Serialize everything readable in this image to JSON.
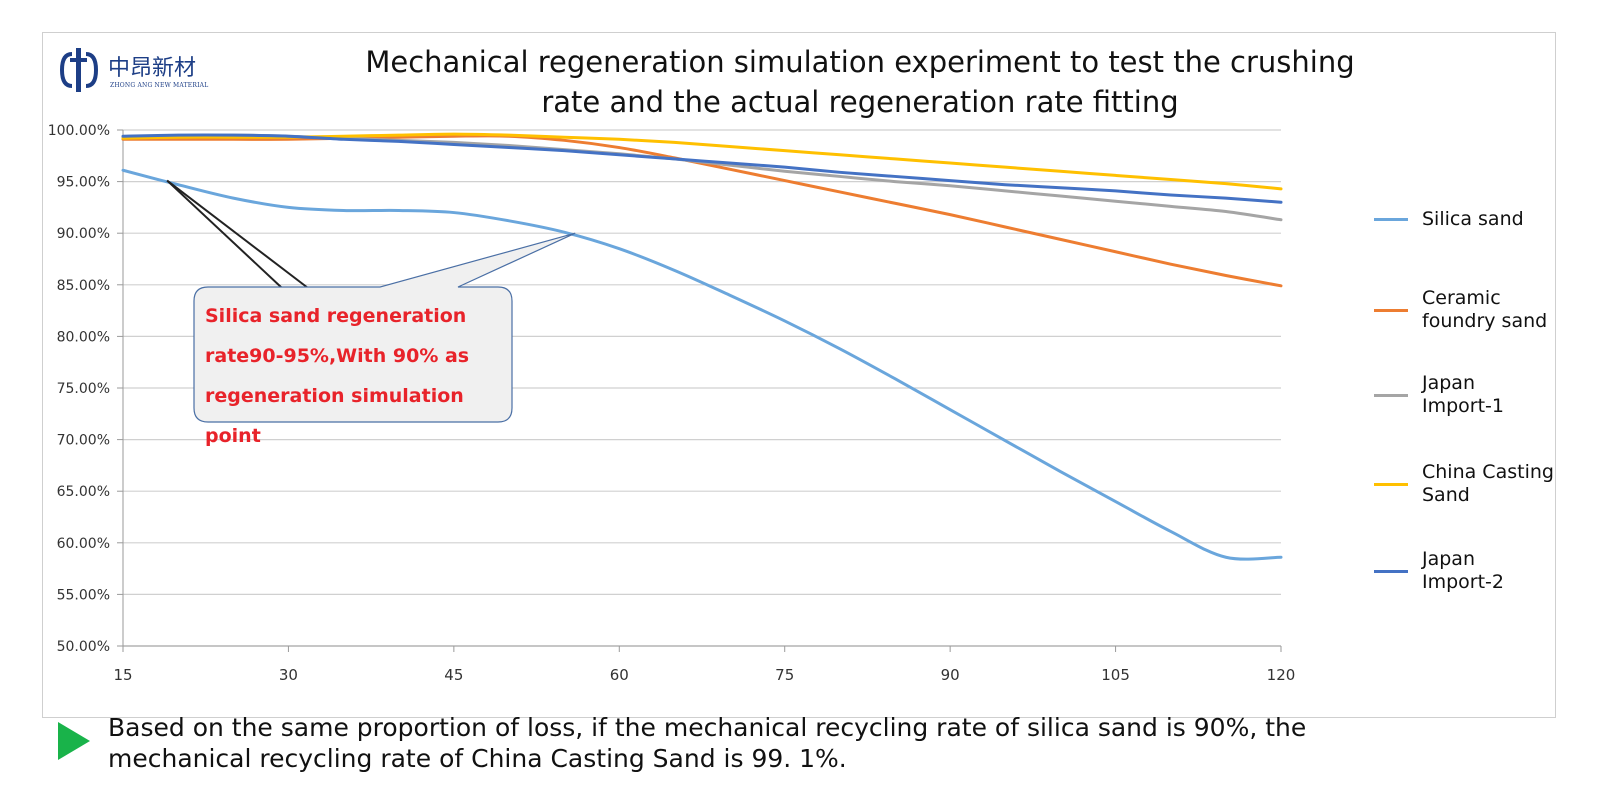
{
  "logo": {
    "cn": "中昂新材",
    "en": "ZHONG ANG NEW MATERIAL"
  },
  "chart_data": {
    "type": "line",
    "title_lines": [
      "Mechanical regeneration simulation experiment to test the crushing",
      "rate and the actual regeneration rate fitting"
    ],
    "x": [
      15,
      20,
      25,
      30,
      35,
      40,
      45,
      50,
      55,
      60,
      65,
      70,
      75,
      80,
      85,
      90,
      95,
      100,
      105,
      110,
      115,
      120
    ],
    "x_ticks": [
      15,
      30,
      45,
      60,
      75,
      90,
      105,
      120
    ],
    "y_ticks": [
      "100.00%",
      "95.00%",
      "90.00%",
      "85.00%",
      "80.00%",
      "75.00%",
      "70.00%",
      "65.00%",
      "60.00%",
      "55.00%",
      "50.00%"
    ],
    "ylim": [
      50,
      100
    ],
    "xlim": [
      15,
      120
    ],
    "series": [
      {
        "name": "Silica sand",
        "color": "#6aa6dc",
        "values": [
          96.1,
          94.7,
          93.4,
          92.5,
          92.2,
          92.2,
          92.0,
          91.2,
          90.1,
          88.5,
          86.4,
          84.0,
          81.5,
          78.8,
          75.9,
          72.9,
          69.9,
          66.9,
          64.0,
          61.1,
          58.6,
          58.6
        ]
      },
      {
        "name": "Ceramic foundry sand",
        "color": "#ed7d31",
        "values": [
          99.1,
          99.1,
          99.1,
          99.1,
          99.2,
          99.3,
          99.4,
          99.4,
          99.0,
          98.3,
          97.3,
          96.2,
          95.1,
          94.0,
          92.9,
          91.8,
          90.6,
          89.4,
          88.2,
          87.0,
          85.9,
          84.9
        ]
      },
      {
        "name": "Japan Import-1",
        "color": "#a5a5a5",
        "values": [
          99.3,
          99.4,
          99.5,
          99.4,
          99.2,
          99.0,
          98.8,
          98.5,
          98.1,
          97.7,
          97.2,
          96.6,
          96.0,
          95.5,
          95.0,
          94.6,
          94.1,
          93.6,
          93.1,
          92.6,
          92.1,
          91.3
        ]
      },
      {
        "name": "China Casting Sand",
        "color": "#ffc000",
        "values": [
          99.2,
          99.3,
          99.3,
          99.3,
          99.4,
          99.5,
          99.6,
          99.5,
          99.3,
          99.1,
          98.8,
          98.4,
          98.0,
          97.6,
          97.2,
          96.8,
          96.4,
          96.0,
          95.6,
          95.2,
          94.8,
          94.3
        ]
      },
      {
        "name": "Japan Import-2",
        "color": "#4472c4",
        "values": [
          99.4,
          99.5,
          99.5,
          99.4,
          99.1,
          98.9,
          98.6,
          98.3,
          98.0,
          97.6,
          97.2,
          96.8,
          96.4,
          95.9,
          95.5,
          95.1,
          94.7,
          94.4,
          94.1,
          93.7,
          93.4,
          93.0
        ]
      }
    ],
    "legend_lines": [
      [
        "Silica sand"
      ],
      [
        "Ceramic",
        "foundry sand"
      ],
      [
        "Japan",
        "Import-1"
      ],
      [
        "China Casting",
        "Sand"
      ],
      [
        "Japan",
        "Import-2"
      ]
    ],
    "annotation": {
      "lines": [
        "Silica sand regeneration",
        "rate90-95%,With 90% as",
        "regeneration simulation point"
      ],
      "point_a": {
        "x": 19,
        "y": 95.1
      },
      "point_b": {
        "x": 56,
        "y": 90.0
      }
    }
  },
  "footnote": {
    "line1": "Based on the same proportion of loss, if the mechanical recycling rate of silica sand is 90%, the",
    "line2": "mechanical recycling rate of China Casting Sand is 99. 1%."
  }
}
